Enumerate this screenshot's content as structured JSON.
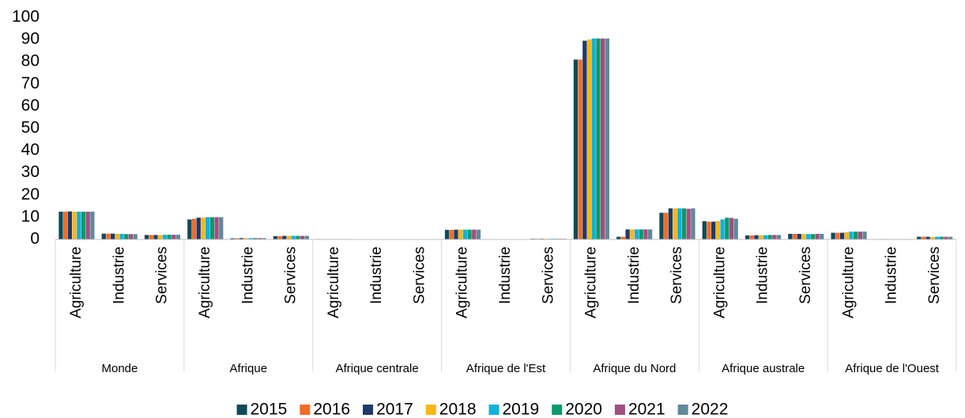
{
  "chart_data": {
    "type": "bar",
    "groups": [
      "Monde",
      "Afrique",
      "Afrique centrale",
      "Afrique de l'Est",
      "Afrique du Nord",
      "Afrique australe",
      "Afrique de l'Ouest"
    ],
    "categories": [
      "Agriculture",
      "Industrie",
      "Services",
      "Agriculture",
      "Industrie",
      "Services",
      "Agriculture",
      "Industrie",
      "Services",
      "Agriculture",
      "Industrie",
      "Services",
      "Agriculture",
      "Industrie",
      "Services",
      "Agriculture",
      "Industrie",
      "Services",
      "Agriculture",
      "Industrie",
      "Services"
    ],
    "series": [
      {
        "name": "2015",
        "color": "#0e4a5a",
        "values": [
          12.5,
          2.6,
          2.0,
          9.0,
          0.5,
          1.5,
          0.2,
          0.1,
          0.1,
          4.3,
          0.1,
          0.3,
          81,
          1.2,
          12,
          8.2,
          1.8,
          2.5,
          3.0,
          0.2,
          1.2
        ]
      },
      {
        "name": "2016",
        "color": "#f26b2a",
        "values": [
          12.5,
          2.6,
          2.0,
          9.3,
          0.5,
          1.5,
          0.2,
          0.1,
          0.1,
          4.3,
          0.1,
          0.3,
          81,
          1.2,
          12,
          8.0,
          1.8,
          2.5,
          3.0,
          0.2,
          1.2
        ]
      },
      {
        "name": "2017",
        "color": "#1f3a6b",
        "values": [
          12.6,
          2.6,
          2.0,
          9.8,
          0.6,
          1.6,
          0.2,
          0.1,
          0.1,
          4.4,
          0.1,
          0.3,
          89.5,
          4.5,
          14,
          8.0,
          1.9,
          2.5,
          3.0,
          0.2,
          1.2
        ]
      },
      {
        "name": "2018",
        "color": "#fbb616",
        "values": [
          12.5,
          2.5,
          2.0,
          9.8,
          0.6,
          1.6,
          0.2,
          0.1,
          0.1,
          4.4,
          0.1,
          0.3,
          90,
          4.5,
          14,
          8.3,
          1.9,
          2.4,
          3.3,
          0.2,
          1.1
        ]
      },
      {
        "name": "2019",
        "color": "#12b0d8",
        "values": [
          12.5,
          2.5,
          2.1,
          10,
          0.6,
          1.6,
          0.2,
          0.1,
          0.1,
          4.4,
          0.1,
          0.3,
          90.5,
          4.5,
          14,
          9.0,
          1.9,
          2.4,
          3.5,
          0.2,
          1.2
        ]
      },
      {
        "name": "2020",
        "color": "#0b9a6a",
        "values": [
          12.5,
          2.4,
          2.1,
          10,
          0.6,
          1.6,
          0.2,
          0.1,
          0.1,
          4.4,
          0.1,
          0.3,
          90.5,
          4.5,
          14,
          9.8,
          2.0,
          2.4,
          3.5,
          0.2,
          1.2
        ]
      },
      {
        "name": "2021",
        "color": "#a04f7f",
        "values": [
          12.5,
          2.4,
          2.1,
          10,
          0.6,
          1.6,
          0.2,
          0.1,
          0.1,
          4.4,
          0.1,
          0.3,
          90.5,
          4.5,
          13.8,
          9.7,
          2.0,
          2.5,
          3.5,
          0.2,
          1.2
        ]
      },
      {
        "name": "2022",
        "color": "#5e8a9a",
        "values": [
          12.5,
          2.4,
          2.1,
          10,
          0.6,
          1.6,
          0.2,
          0.1,
          0.1,
          4.4,
          0.1,
          0.3,
          90.5,
          4.5,
          14,
          9.3,
          2.0,
          2.5,
          3.5,
          0.2,
          1.2
        ]
      }
    ],
    "ylim": [
      0,
      100
    ],
    "yticks": [
      0,
      10,
      20,
      30,
      40,
      50,
      60,
      70,
      80,
      90,
      100
    ],
    "legend": "bottom"
  }
}
